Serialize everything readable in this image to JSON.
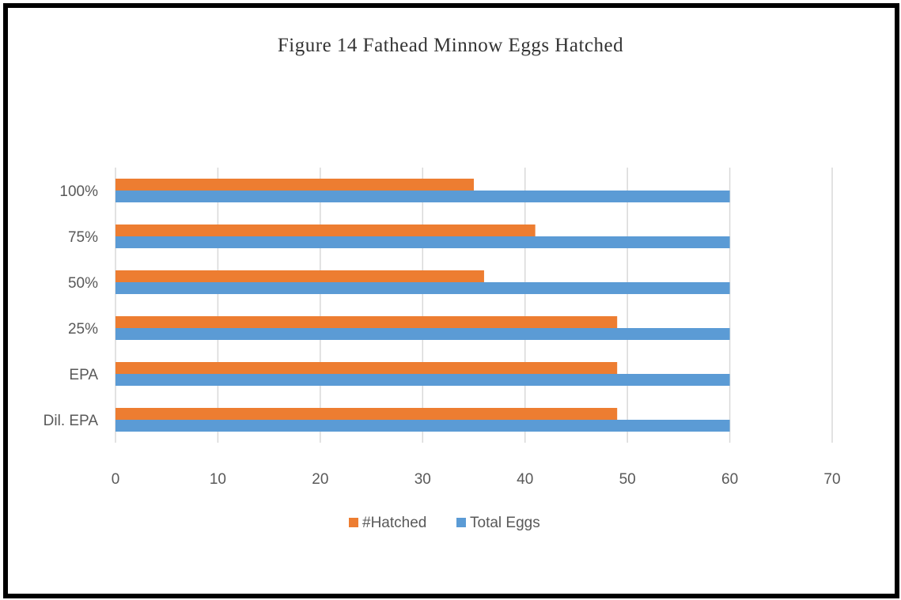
{
  "chart_data": {
    "type": "bar",
    "orientation": "horizontal",
    "title": "Figure 14 Fathead Minnow Eggs Hatched",
    "categories": [
      "100%",
      "75%",
      "50%",
      "25%",
      "EPA",
      "Dil. EPA"
    ],
    "series": [
      {
        "name": "#Hatched",
        "color": "#ED7D31",
        "values": [
          35,
          41,
          36,
          49,
          49,
          49
        ]
      },
      {
        "name": "Total Eggs",
        "color": "#5B9BD5",
        "values": [
          60,
          60,
          60,
          60,
          60,
          60
        ]
      }
    ],
    "xlim": [
      0,
      70
    ],
    "xticks": [
      0,
      10,
      20,
      30,
      40,
      50,
      60,
      70
    ],
    "grid": "vertical",
    "legend_position": "bottom"
  }
}
